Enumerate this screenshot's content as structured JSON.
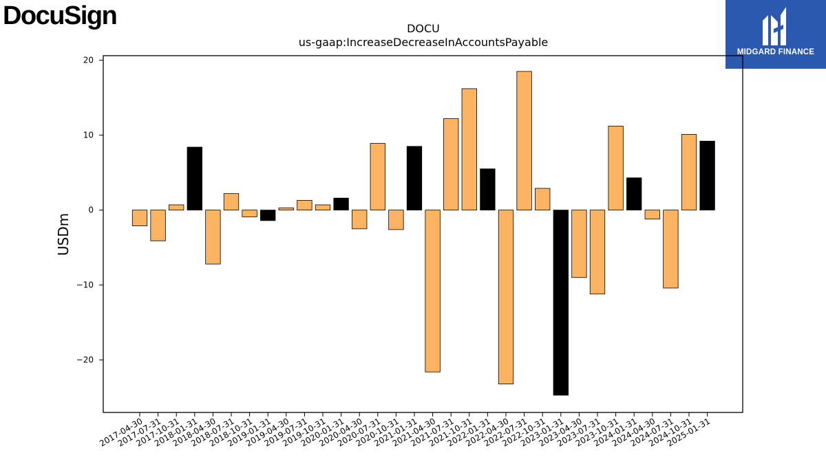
{
  "logos": {
    "left_text": "DocuSign",
    "right_text": "MIDGARD FINANCE"
  },
  "colors": {
    "bar_primary": "#fdb462",
    "bar_highlight": "#000000",
    "logo_right_bg": "#2b59b0"
  },
  "chart_data": {
    "type": "bar",
    "title": "DOCU",
    "subtitle": "us-gaap:IncreaseDecreaseInAccountsPayable",
    "xlabel": "",
    "ylabel": "USDm",
    "ylim": [
      -27,
      20.6
    ],
    "yticks": [
      20,
      10,
      0,
      -10,
      -20
    ],
    "ytick_labels": [
      "20",
      "10",
      "0",
      "−10",
      "−20"
    ],
    "grid": false,
    "categories": [
      "2017-04-30",
      "2017-07-31",
      "2017-10-31",
      "2018-01-31",
      "2018-04-30",
      "2018-07-31",
      "2018-10-31",
      "2019-01-31",
      "2019-04-30",
      "2019-07-31",
      "2019-10-31",
      "2020-01-31",
      "2020-04-30",
      "2020-07-31",
      "2020-10-31",
      "2021-01-31",
      "2021-04-30",
      "2021-07-31",
      "2021-10-31",
      "2022-01-31",
      "2022-04-30",
      "2022-07-31",
      "2022-10-31",
      "2023-01-31",
      "2023-04-30",
      "2023-07-31",
      "2023-10-31",
      "2024-01-31",
      "2024-04-30",
      "2024-07-31",
      "2024-10-31",
      "2025-01-31"
    ],
    "values": [
      -2.1,
      -4.1,
      0.7,
      8.4,
      -7.2,
      2.2,
      -0.9,
      -1.4,
      0.3,
      1.3,
      0.7,
      1.6,
      -2.5,
      8.9,
      -2.6,
      8.5,
      -21.6,
      12.2,
      16.2,
      5.5,
      -23.2,
      18.5,
      2.9,
      -24.7,
      -9.0,
      -11.2,
      11.2,
      4.3,
      -1.2,
      -10.4,
      10.1,
      9.2
    ],
    "highlight": [
      false,
      false,
      false,
      true,
      false,
      false,
      false,
      true,
      false,
      false,
      false,
      true,
      false,
      false,
      false,
      true,
      false,
      false,
      false,
      true,
      false,
      false,
      false,
      true,
      false,
      false,
      false,
      true,
      false,
      false,
      false,
      true
    ]
  }
}
